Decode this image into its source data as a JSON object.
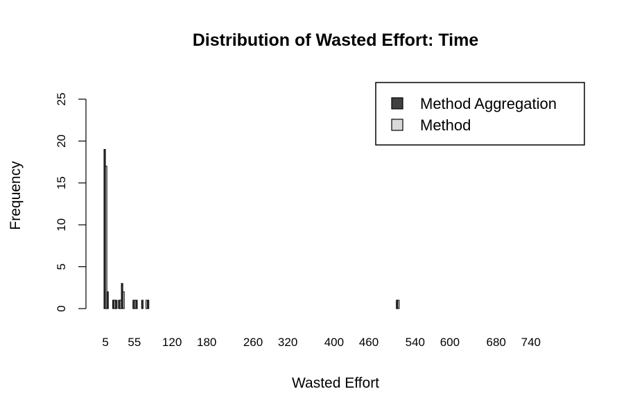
{
  "chart_data": {
    "type": "bar",
    "title": "Distribution of Wasted Effort: Time",
    "xlabel": "Wasted Effort",
    "ylabel": "Frequency",
    "ylim": [
      0,
      25
    ],
    "y_ticks": [
      0,
      5,
      10,
      15,
      20,
      25
    ],
    "x_tick_labels": [
      "5",
      "55",
      "120",
      "180",
      "260",
      "320",
      "400",
      "460",
      "540",
      "600",
      "680",
      "740"
    ],
    "grid": false,
    "legend_position": "top-right",
    "categories": [
      "5",
      "10",
      "15",
      "20",
      "25",
      "30",
      "35",
      "40",
      "45",
      "50",
      "55",
      "60",
      "65",
      "70",
      "75",
      "80",
      "85",
      "90",
      "95",
      "100",
      "105",
      "110",
      "115",
      "120",
      "125",
      "130",
      "135",
      "140",
      "145",
      "150",
      "155",
      "160",
      "165",
      "170",
      "175",
      "180",
      "185",
      "190",
      "195",
      "200",
      "205",
      "210",
      "215",
      "220",
      "225",
      "230",
      "235",
      "240",
      "245",
      "250",
      "255",
      "260",
      "265",
      "270",
      "275",
      "280",
      "285",
      "290",
      "295",
      "300",
      "305",
      "310",
      "315",
      "320",
      "325",
      "330",
      "335",
      "340",
      "345",
      "350",
      "355",
      "360",
      "365",
      "370",
      "375",
      "380",
      "385",
      "390",
      "395",
      "400",
      "405",
      "410",
      "415",
      "420",
      "425",
      "430",
      "435",
      "440",
      "445",
      "450",
      "455",
      "460",
      "465",
      "470",
      "475",
      "480",
      "485",
      "490",
      "495",
      "500",
      "505",
      "510",
      "515",
      "520",
      "525",
      "530",
      "535",
      "540",
      "545",
      "550",
      "555",
      "560",
      "565",
      "570",
      "575",
      "580",
      "585",
      "590",
      "595",
      "600",
      "605",
      "610",
      "615",
      "620",
      "625",
      "630",
      "635",
      "640",
      "645",
      "650",
      "655",
      "660",
      "665",
      "670",
      "675",
      "680",
      "685",
      "690",
      "695",
      "700",
      "705",
      "710",
      "715",
      "720",
      "725",
      "730",
      "735",
      "740",
      "745",
      "750",
      "755",
      "760",
      "765",
      "770",
      "775",
      "780",
      "785",
      "790",
      "795",
      "800"
    ],
    "series": [
      {
        "name": "Method Aggregation",
        "color": "#404040",
        "values": [
          19,
          2,
          0,
          1,
          1,
          1,
          3,
          0,
          0,
          0,
          1,
          1,
          0,
          1,
          0,
          1,
          0,
          0,
          0,
          0,
          0,
          0,
          0,
          0,
          0,
          0,
          0,
          0,
          0,
          0,
          0,
          0,
          0,
          0,
          0,
          0,
          0,
          0,
          0,
          0,
          0,
          0,
          0,
          0,
          0,
          0,
          0,
          0,
          0,
          0,
          0,
          0,
          0,
          0,
          0,
          0,
          0,
          0,
          0,
          0,
          0,
          0,
          0,
          0,
          0,
          0,
          0,
          0,
          0,
          0,
          0,
          0,
          0,
          0,
          0,
          0,
          0,
          0,
          0,
          0,
          0,
          0,
          0,
          0,
          0,
          0,
          0,
          0,
          0,
          0,
          0,
          0,
          0,
          0,
          0,
          0,
          0,
          0,
          0,
          0,
          0,
          1,
          0,
          0,
          0,
          0,
          0,
          0,
          0,
          0,
          0,
          0,
          0,
          0,
          0,
          0,
          0,
          0,
          0,
          0,
          0,
          0,
          0,
          0,
          0,
          0,
          0,
          0,
          0,
          0,
          0,
          0,
          0,
          0,
          0,
          0,
          0,
          0,
          0,
          0,
          0,
          0,
          0,
          0,
          0,
          0,
          0,
          0,
          0,
          0,
          0,
          0,
          0,
          0,
          0,
          0,
          0,
          0,
          0,
          0
        ]
      },
      {
        "name": "Method",
        "color": "#d9d9d9",
        "values": [
          17,
          0,
          0,
          1,
          0,
          1,
          2,
          0,
          0,
          0,
          1,
          0,
          0,
          0,
          1,
          0,
          0,
          0,
          0,
          0,
          0,
          0,
          0,
          0,
          0,
          0,
          0,
          0,
          0,
          0,
          0,
          0,
          0,
          0,
          0,
          0,
          0,
          0,
          0,
          0,
          0,
          0,
          0,
          0,
          0,
          0,
          0,
          0,
          0,
          0,
          0,
          0,
          0,
          0,
          0,
          0,
          0,
          0,
          0,
          0,
          0,
          0,
          0,
          0,
          0,
          0,
          0,
          0,
          0,
          0,
          0,
          0,
          0,
          0,
          0,
          0,
          0,
          0,
          0,
          0,
          0,
          0,
          0,
          0,
          0,
          0,
          0,
          0,
          0,
          0,
          0,
          0,
          0,
          0,
          0,
          0,
          0,
          0,
          0,
          0,
          0,
          1,
          0,
          0,
          0,
          0,
          0,
          0,
          0,
          0,
          0,
          0,
          0,
          0,
          0,
          0,
          0,
          0,
          0,
          0,
          0,
          0,
          0,
          0,
          0,
          0,
          0,
          0,
          0,
          0,
          0,
          0,
          0,
          0,
          0,
          0,
          0,
          0,
          0,
          0,
          0,
          0,
          0,
          0,
          0,
          0,
          0,
          0,
          0,
          0,
          0,
          0,
          0,
          0,
          0,
          0,
          0,
          0,
          0,
          0
        ]
      }
    ]
  }
}
